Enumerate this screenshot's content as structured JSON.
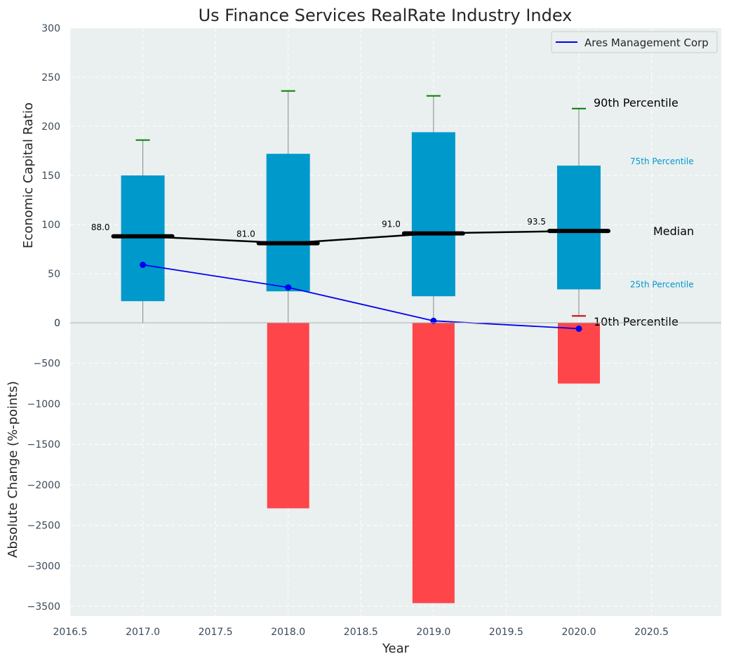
{
  "chart_data": {
    "type": "box-and-bar",
    "title": "Us Finance Services RealRate Industry Index",
    "xlabel": "Year",
    "top_panel": {
      "ylabel": "Economic Capital Ratio",
      "ylim": [
        0,
        300
      ],
      "yticks": [
        "0",
        "50",
        "100",
        "150",
        "200",
        "250",
        "300"
      ],
      "boxes": [
        {
          "x": 2017,
          "p10": 0,
          "p25": 22,
          "median": 88.0,
          "p75": 150,
          "p90": 186,
          "median_label": "88.0"
        },
        {
          "x": 2018,
          "p10": 0,
          "p25": 32,
          "median": 81.0,
          "p75": 172,
          "p90": 236,
          "median_label": "81.0"
        },
        {
          "x": 2019,
          "p10": 0,
          "p25": 27,
          "median": 91.0,
          "p75": 194,
          "p90": 231,
          "median_label": "91.0"
        },
        {
          "x": 2020,
          "p10": 7,
          "p25": 34,
          "median": 93.5,
          "p75": 160,
          "p90": 218,
          "median_label": "93.5"
        }
      ],
      "company_series": {
        "name": "Ares Management Corp",
        "x": [
          2017,
          2018,
          2019,
          2020
        ],
        "values": [
          59,
          36,
          2,
          -6
        ],
        "color": "#0000ee"
      },
      "annotations": {
        "p90": "90th Percentile",
        "p75": "75th Percentile",
        "median": "Median",
        "p25": "25th Percentile",
        "p10": "10th Percentile"
      }
    },
    "bottom_panel": {
      "ylabel": "Absolute Change (%-points)",
      "ylim": [
        -3620,
        0
      ],
      "yticks": [
        "0",
        "−500",
        "−1000",
        "−1500",
        "−2000",
        "−2500",
        "−3000",
        "−3500"
      ],
      "bars": [
        {
          "x": 2018,
          "value": -2290
        },
        {
          "x": 2019,
          "value": -3460
        },
        {
          "x": 2020,
          "value": -750
        }
      ]
    },
    "xlim": [
      2016.5,
      2020.98
    ],
    "xticks": [
      "2016.5",
      "2017.0",
      "2017.5",
      "2018.0",
      "2018.5",
      "2019.0",
      "2019.5",
      "2020.0",
      "2020.5"
    ],
    "grid": true,
    "legend": {
      "position": "top-right",
      "entries": [
        "Ares Management Corp"
      ]
    },
    "colors": {
      "box": "#0099cc",
      "bar": "#ff3b3f",
      "median": "#000000",
      "p90_cap": "#008000",
      "p10_cap": "#cc0000",
      "background": "#eaeff0"
    }
  }
}
